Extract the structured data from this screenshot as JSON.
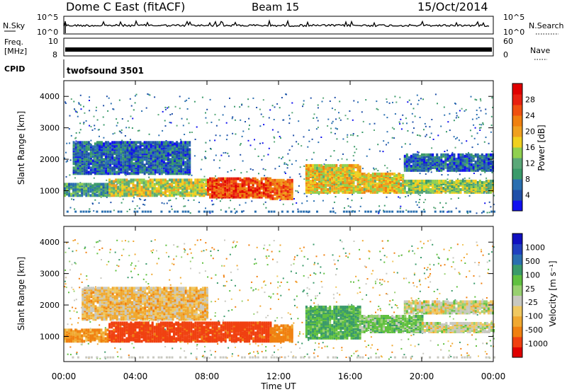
{
  "header": {
    "station": "Dome C East (fitACF)",
    "beam": "Beam 15",
    "date": "15/Oct/2014"
  },
  "top_panels": {
    "nsky": {
      "label": "N.Sky",
      "ytick_top": "10^5",
      "ytick_bottom": "10^0",
      "right_label": "N.Search",
      "right_tick_top": "10^5",
      "right_tick_bottom": "10^0"
    },
    "freq": {
      "label_line1": "Freq.",
      "label_line2": "[MHz]",
      "ytick_top": "10",
      "ytick_bottom": "8",
      "right_label": "Nave",
      "right_tick_top": "60",
      "right_tick_bottom": "0"
    },
    "cpid": {
      "label": "CPID",
      "value": "twofsound 3501"
    }
  },
  "colors": {
    "power": [
      "#1010f0",
      "#1f4fa8",
      "#2a6fb0",
      "#3a9a6a",
      "#5aa878",
      "#90d050",
      "#f0d020",
      "#f0a020",
      "#f08010",
      "#f05010",
      "#e82010",
      "#e00000"
    ],
    "velocity": [
      "#e00000",
      "#f04010",
      "#f08010",
      "#f0a830",
      "#f0c860",
      "#c8c8c0",
      "#98d070",
      "#60c040",
      "#3a9a6a",
      "#2a6fb0",
      "#2040c0",
      "#1010c0"
    ]
  },
  "chart_data": [
    {
      "type": "heatmap",
      "name": "Power",
      "ylabel": "Slant Range [km]",
      "yticks": [
        "1000",
        "2000",
        "3000",
        "4000"
      ],
      "ylim": [
        200,
        4500
      ],
      "xlim": [
        "00:00",
        "24:00"
      ],
      "colorbar": {
        "label": "Power [dB]",
        "ticks": [
          "4",
          "8",
          "12",
          "16",
          "20",
          "24",
          "28"
        ],
        "range": [
          0,
          32
        ]
      },
      "bands": [
        {
          "t0": 0,
          "t1": 2.5,
          "r0": 800,
          "r1": 1200,
          "value": 10
        },
        {
          "t0": 2.5,
          "t1": 8,
          "r0": 800,
          "r1": 1300,
          "value": 16
        },
        {
          "t0": 8,
          "t1": 11.5,
          "r0": 750,
          "r1": 1350,
          "value": 26
        },
        {
          "t0": 11.5,
          "t1": 12.8,
          "r0": 700,
          "r1": 1300,
          "value": 24
        },
        {
          "t0": 13.5,
          "t1": 16.5,
          "r0": 900,
          "r1": 1800,
          "value": 18
        },
        {
          "t0": 16.5,
          "t1": 19,
          "r0": 900,
          "r1": 1500,
          "value": 18
        },
        {
          "t0": 19,
          "t1": 24,
          "r0": 900,
          "r1": 1300,
          "value": 14
        },
        {
          "t0": 19,
          "t1": 24,
          "r0": 1600,
          "r1": 2100,
          "value": 6
        },
        {
          "t0": 0.5,
          "t1": 7,
          "r0": 1500,
          "r1": 2500,
          "value": 6
        }
      ]
    },
    {
      "type": "heatmap",
      "name": "Velocity",
      "ylabel": "Slant Range [km]",
      "xlabel": "Time UT",
      "xticks": [
        "00:00",
        "04:00",
        "08:00",
        "12:00",
        "16:00",
        "20:00",
        "00:00"
      ],
      "yticks": [
        "1000",
        "2000",
        "3000",
        "4000"
      ],
      "ylim": [
        200,
        4500
      ],
      "xlim": [
        "00:00",
        "24:00"
      ],
      "colorbar": {
        "label": "Velocity [m s⁻¹]",
        "ticks": [
          "1000",
          "500",
          "100",
          "25",
          "-25",
          "-100",
          "-500",
          "-1000"
        ],
        "range": [
          -1000,
          1000
        ]
      },
      "bands": [
        {
          "t0": 0,
          "t1": 2.5,
          "r0": 800,
          "r1": 1200,
          "value": -100
        },
        {
          "t0": 2.5,
          "t1": 11.5,
          "r0": 800,
          "r1": 1400,
          "value": -300
        },
        {
          "t0": 11.5,
          "t1": 12.8,
          "r0": 800,
          "r1": 1300,
          "value": -150
        },
        {
          "t0": 13.5,
          "t1": 16.5,
          "r0": 900,
          "r1": 1900,
          "value": 100
        },
        {
          "t0": 16.5,
          "t1": 20,
          "r0": 1100,
          "r1": 1600,
          "value": 60
        },
        {
          "t0": 20,
          "t1": 24,
          "r0": 1100,
          "r1": 1400,
          "value": 0
        },
        {
          "t0": 19,
          "t1": 24,
          "r0": 1700,
          "r1": 2100,
          "value": 0
        },
        {
          "t0": 1,
          "t1": 8,
          "r0": 1500,
          "r1": 2500,
          "value": -50
        }
      ]
    }
  ]
}
